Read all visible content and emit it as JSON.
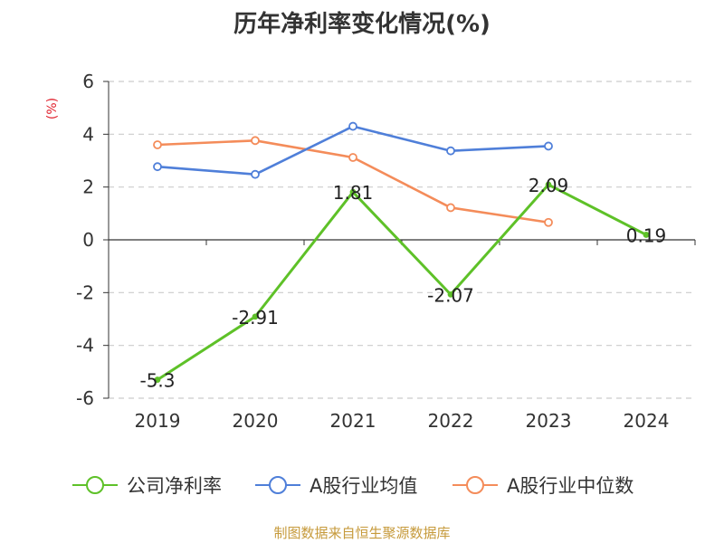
{
  "title": "历年净利率变化情况(%)",
  "unit_label": "(%)",
  "source_note": "制图数据来自恒生聚源数据库",
  "colors": {
    "net_margin": "#5ec128",
    "industry_avg": "#4f7fd9",
    "industry_median": "#f48c5a",
    "axis": "#333333",
    "grid": "#cccccc",
    "unit": "#e0212d",
    "source": "#c69a3b"
  },
  "legend": [
    {
      "name": "公司净利率",
      "color": "#5ec128"
    },
    {
      "name": "A股行业均值",
      "color": "#4f7fd9"
    },
    {
      "name": "A股行业中位数",
      "color": "#f48c5a"
    }
  ],
  "chart_data": {
    "type": "line",
    "title": "历年净利率变化情况(%)",
    "xlabel": "",
    "ylabel": "(%)",
    "categories": [
      "2019",
      "2020",
      "2021",
      "2022",
      "2023",
      "2024"
    ],
    "ylim": [
      -6,
      6
    ],
    "yticks": [
      6,
      4,
      2,
      0,
      -2,
      -4,
      -6
    ],
    "grid": true,
    "legend_position": "bottom",
    "series": [
      {
        "name": "公司净利率",
        "values": [
          -5.3,
          -2.91,
          1.81,
          -2.07,
          2.09,
          0.19
        ],
        "labels": [
          "-5.3",
          "-2.91",
          "1.81",
          "-2.07",
          "2.09",
          "0.19"
        ]
      },
      {
        "name": "A股行业均值",
        "values": [
          2.77,
          2.48,
          4.3,
          3.37,
          3.55,
          null
        ]
      },
      {
        "name": "A股行业中位数",
        "values": [
          3.6,
          3.76,
          3.12,
          1.22,
          0.66,
          null
        ]
      }
    ]
  }
}
